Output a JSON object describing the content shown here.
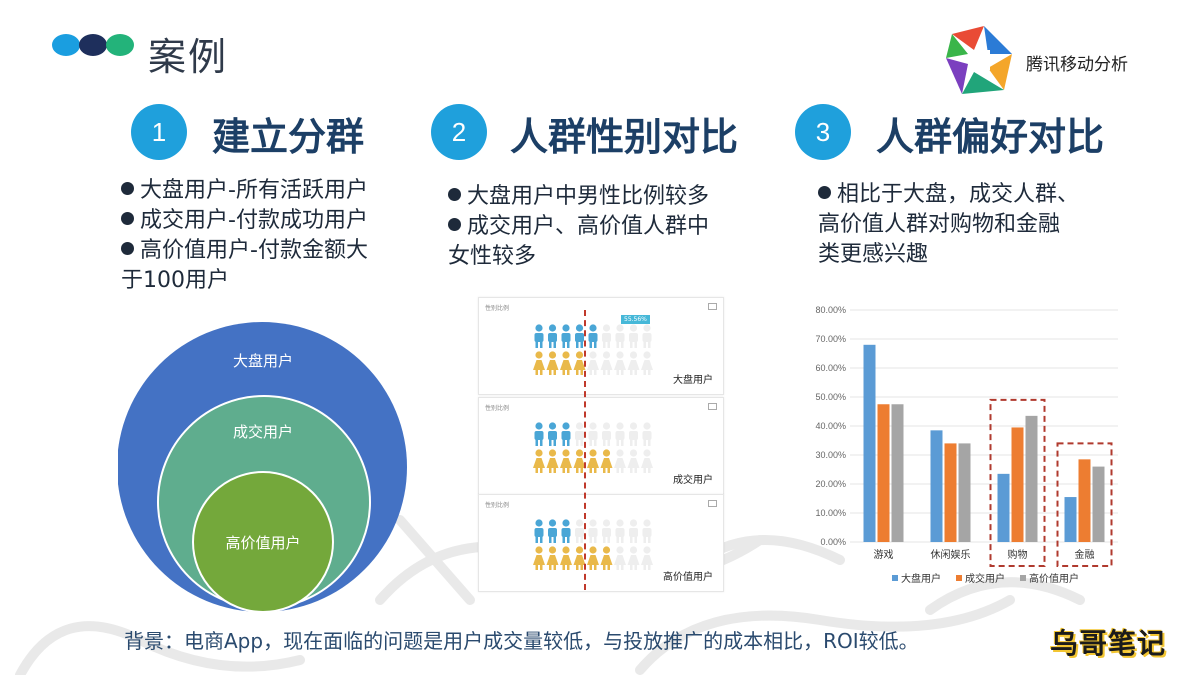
{
  "title": "案例",
  "brand": {
    "name": "腾讯移动分析",
    "logo_icon": "tencent-mta-logo"
  },
  "sections": [
    {
      "number": "1",
      "title": "建立分群",
      "bullets": [
        [
          "大盘用户-所有活跃用户"
        ],
        [
          "成交用户-付款成功用户"
        ],
        [
          "高价值用户-付款金额大",
          "于100用户"
        ]
      ]
    },
    {
      "number": "2",
      "title": "人群性别对比",
      "bullets": [
        [
          "大盘用户中男性比例较多"
        ],
        [
          "成交用户、高价值人群中",
          "女性较多"
        ]
      ]
    },
    {
      "number": "3",
      "title": "人群偏好对比",
      "bullets": [
        [
          "相比于大盘，成交人群、",
          "高价值人群对购物和金融",
          "类更感兴趣"
        ]
      ]
    }
  ],
  "venn": {
    "outer": "大盘用户",
    "middle": "成交用户",
    "inner": "高价值用户"
  },
  "gender_panels": [
    {
      "title": "性别比例",
      "label": "大盘用户",
      "tag": "55.56%",
      "male_ratio": 0.556
    },
    {
      "title": "性别比例",
      "label": "成交用户",
      "tag": "",
      "male_ratio": 0.36
    },
    {
      "title": "性别比例",
      "label": "高价值用户",
      "tag": "",
      "male_ratio": 0.38
    }
  ],
  "chart_data": {
    "type": "bar",
    "categories": [
      "游戏",
      "休闲娱乐",
      "购物",
      "金融"
    ],
    "series": [
      {
        "name": "大盘用户",
        "values": [
          68,
          38.5,
          23.5,
          15.5
        ]
      },
      {
        "name": "成交用户",
        "values": [
          47.5,
          34,
          39.5,
          28.5
        ]
      },
      {
        "name": "高价值用户",
        "values": [
          47.5,
          34,
          43.5,
          26
        ]
      }
    ],
    "y_ticks": [
      "0.00%",
      "10.00%",
      "20.00%",
      "30.00%",
      "40.00%",
      "50.00%",
      "60.00%",
      "70.00%",
      "80.00%"
    ],
    "ylim": [
      0,
      80
    ],
    "colors": [
      "#5b9bd5",
      "#ed7d31",
      "#a5a5a5"
    ],
    "highlighted": [
      "购物",
      "金融"
    ],
    "legend_position": "bottom"
  },
  "footer": "背景：电商App，现在面临的问题是用户成交量较低，与投放推广的成本相比，ROI较低。",
  "watermark": "乌哥笔记"
}
